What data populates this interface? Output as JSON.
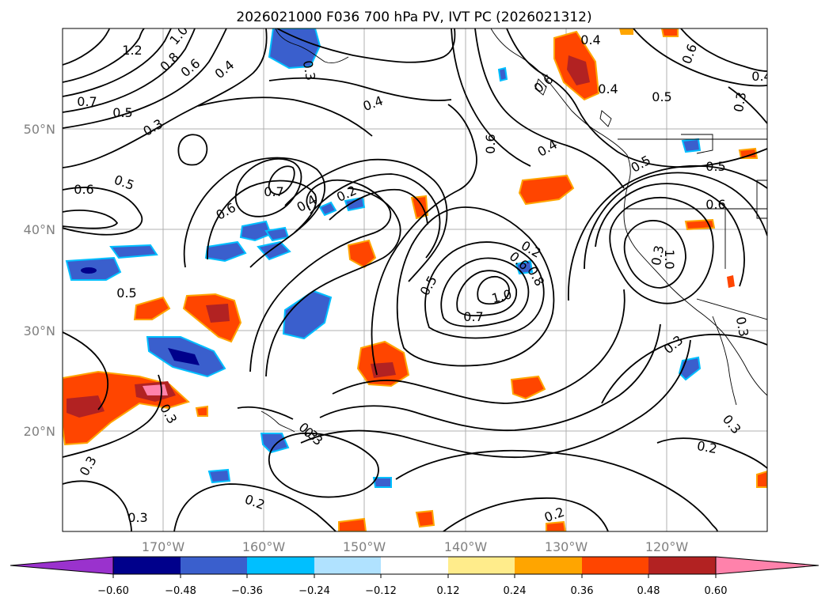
{
  "title": "2026021000 F036 700 hPa PV, IVT PC (2026021312)",
  "latitude_labels": [
    "50°N",
    "40°N",
    "30°N",
    "20°N"
  ],
  "longitude_labels": [
    "170°W",
    "160°W",
    "150°W",
    "140°W",
    "130°W",
    "120°W"
  ],
  "colorbar": {
    "ticks": [
      "−0.60",
      "−0.48",
      "−0.36",
      "−0.24",
      "−0.12",
      "0.12",
      "0.24",
      "0.36",
      "0.48",
      "0.60"
    ],
    "colors": [
      "#9a32cd",
      "#00008b",
      "#3a5fcd",
      "#00bfff",
      "#b0e2ff",
      "#ffffff",
      "#ffec8b",
      "#ffa500",
      "#ff4500",
      "#b22222",
      "#ff82ab"
    ]
  },
  "contour_labels": [
    "1.2",
    "1.0",
    "0.8",
    "0.6",
    "0.4",
    "0.7",
    "0.5",
    "0.3",
    "0.6",
    "0.5",
    "0.7",
    "0.6",
    "0.4",
    "0.2",
    "0.4",
    "0.3",
    "0.6",
    "0.4",
    "0.4",
    "0.5",
    "0.6",
    "0.4",
    "0.6",
    "0.5",
    "0.5",
    "0.6",
    "0.4",
    "0.3",
    "0.6",
    "0.8",
    "0.5",
    "1.0",
    "0.7",
    "1.0",
    "0.5",
    "0.3",
    "0.3",
    "0.3",
    "0.3",
    "0.3",
    "0.2",
    "0.2",
    "0.2",
    "0.3",
    "0.3",
    "0.3",
    "0.2",
    "0.3"
  ]
}
